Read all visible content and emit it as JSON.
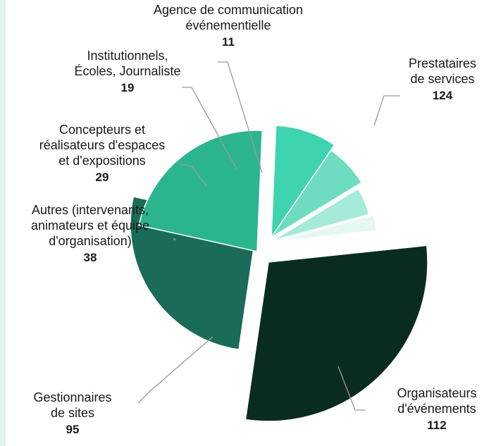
{
  "chart_data": {
    "type": "pie",
    "slices": [
      {
        "label": [
          "Prestataires",
          "de services"
        ],
        "value": 124,
        "value_text": "124",
        "color": "#0a2b22"
      },
      {
        "label": [
          "Organisateurs",
          "d'événements"
        ],
        "value": 112,
        "value_text": "112",
        "color": "#1a6b57"
      },
      {
        "label": [
          "Gestionnaires",
          "de sites"
        ],
        "value": 95,
        "value_text": "95",
        "color": "#2bb58f"
      },
      {
        "label": [
          "Autres (intervenants,",
          "animateurs et équipe",
          "d'organisation)"
        ],
        "value": 38,
        "value_text": "38",
        "color": "#3fd3b0"
      },
      {
        "label": [
          "Concepteurs et",
          "réalisateurs d'espaces",
          "et d'expositions"
        ],
        "value": 29,
        "value_text": "29",
        "color": "#6fdcc2"
      },
      {
        "label": [
          "Institutionnels,",
          "Écoles, Journaliste"
        ],
        "value": 19,
        "value_text": "19",
        "color": "#a6ead9"
      },
      {
        "label": [
          "Agence de communication",
          "événementielle"
        ],
        "value": 11,
        "value_text": "11",
        "color": "#e4f7f1"
      }
    ]
  }
}
